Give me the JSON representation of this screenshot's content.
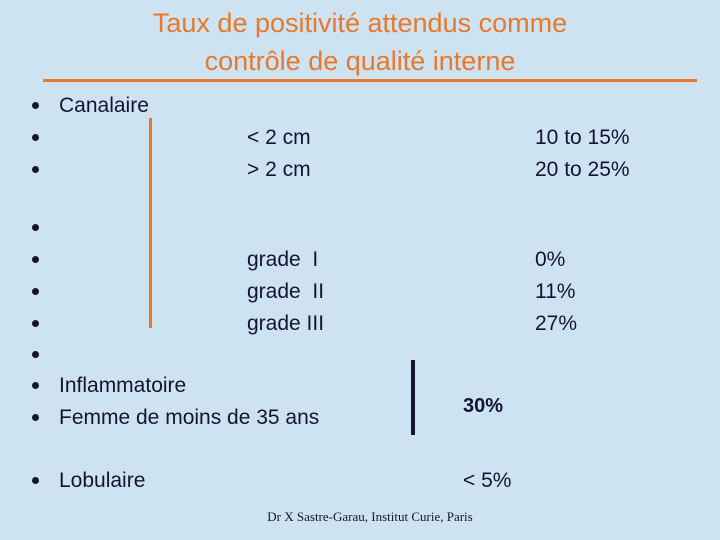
{
  "title": [
    "Taux de positivité attendus comme",
    "contrôle de qualité interne"
  ],
  "canalaire": {
    "label": "Canalaire",
    "size": [
      {
        "label": "< 2 cm",
        "rate": "10 to 15%"
      },
      {
        "label": "> 2 cm",
        "rate": "20 to 25%"
      }
    ],
    "grade": [
      {
        "label": "grade  I",
        "rate": "0%"
      },
      {
        "label": "grade  II",
        "rate": "11%"
      },
      {
        "label": "grade III",
        "rate": "27%"
      }
    ]
  },
  "risk": {
    "items": [
      "Inflammatoire",
      "Femme de moins de 35 ans"
    ],
    "rate": "30%"
  },
  "lobulaire": {
    "label": "Lobulaire",
    "rate": "< 5%"
  },
  "footer": "Dr X Sastre-Garau, Institut Curie, Paris"
}
